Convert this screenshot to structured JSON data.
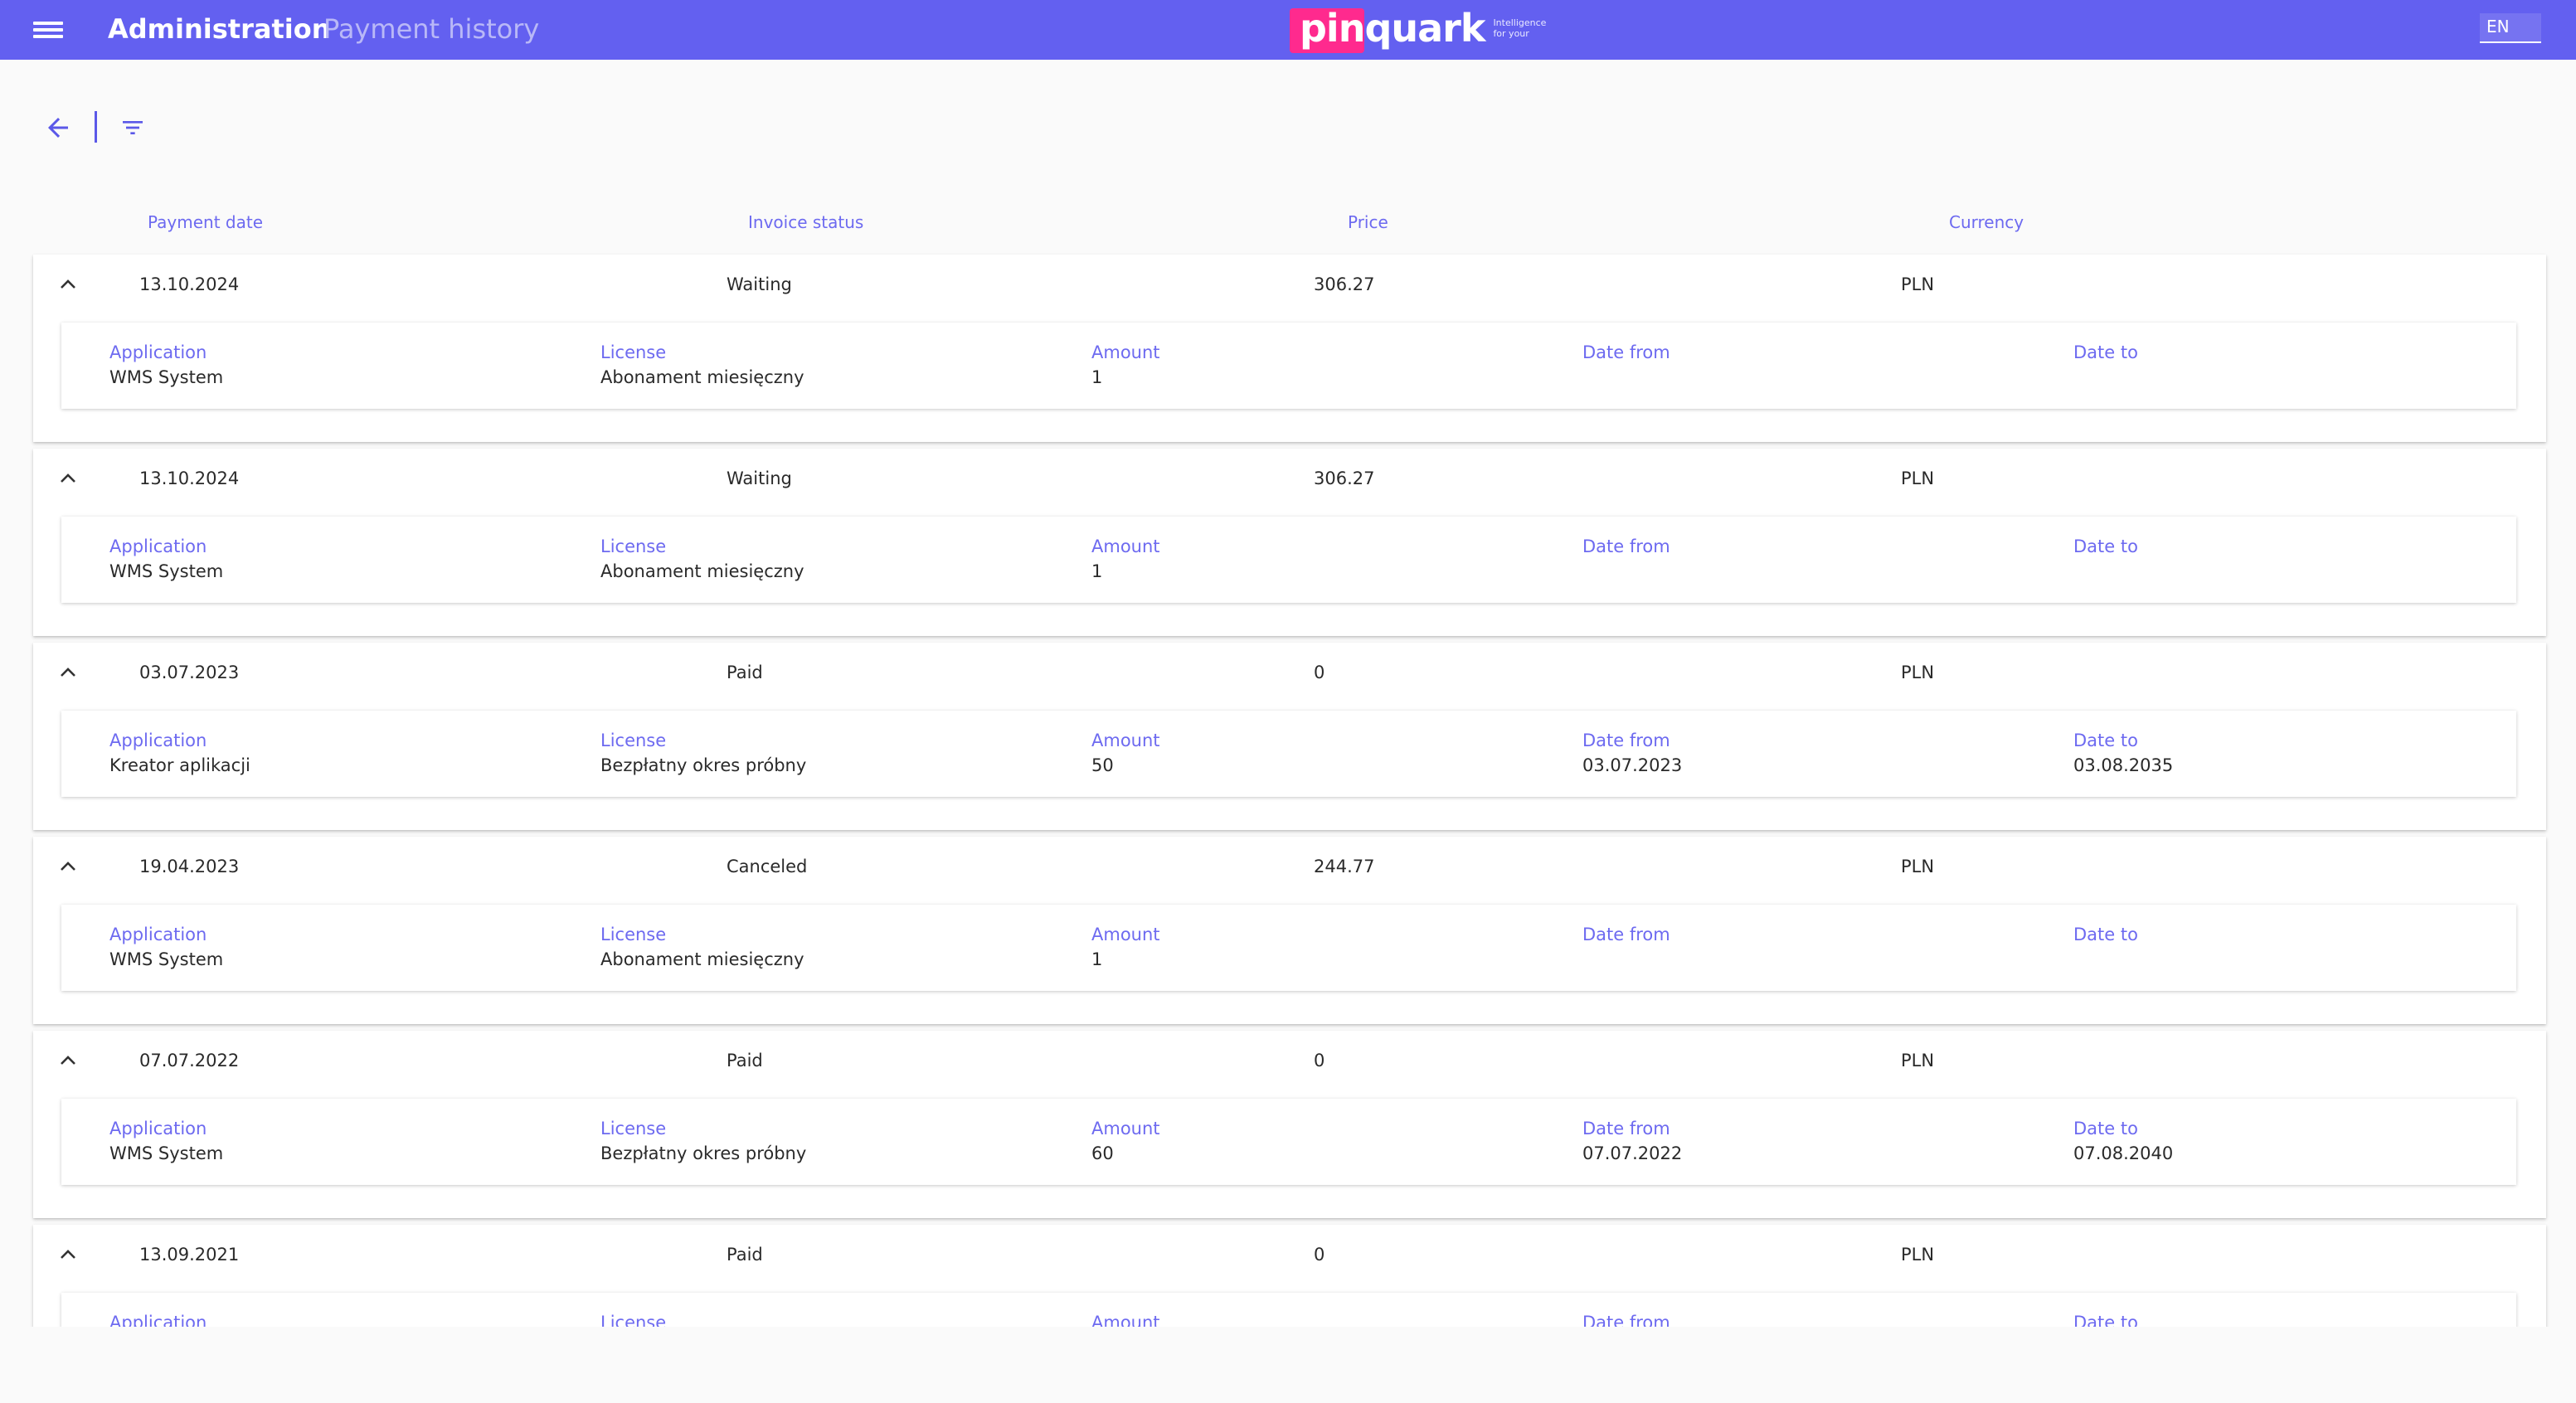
{
  "header": {
    "title": "Administration",
    "subtitle": "Payment history",
    "logo_text": "pinquark",
    "logo_tagline": "Intelligence for your",
    "language": "EN"
  },
  "colors": {
    "header_bg": "#6360f0",
    "accent": "#6d6af0",
    "logo_pink": "#ff2a8e"
  },
  "icons": {
    "menu": "menu-icon",
    "back": "arrow-left-icon",
    "filter": "filter-icon",
    "expand": "chevron-up-icon"
  },
  "columns": {
    "payment_date": "Payment date",
    "invoice_status": "Invoice status",
    "price": "Price",
    "currency": "Currency"
  },
  "detail_labels": {
    "application": "Application",
    "license": "License",
    "amount": "Amount",
    "date_from": "Date from",
    "date_to": "Date to"
  },
  "payments": [
    {
      "date": "13.10.2024",
      "status": "Waiting",
      "price": "306.27",
      "currency": "PLN",
      "application": "WMS System",
      "license": "Abonament miesięczny",
      "amount": "1",
      "date_from": "",
      "date_to": ""
    },
    {
      "date": "13.10.2024",
      "status": "Waiting",
      "price": "306.27",
      "currency": "PLN",
      "application": "WMS System",
      "license": "Abonament miesięczny",
      "amount": "1",
      "date_from": "",
      "date_to": ""
    },
    {
      "date": "03.07.2023",
      "status": "Paid",
      "price": "0",
      "currency": "PLN",
      "application": "Kreator aplikacji",
      "license": "Bezpłatny okres próbny",
      "amount": "50",
      "date_from": "03.07.2023",
      "date_to": "03.08.2035"
    },
    {
      "date": "19.04.2023",
      "status": "Canceled",
      "price": "244.77",
      "currency": "PLN",
      "application": "WMS System",
      "license": "Abonament miesięczny",
      "amount": "1",
      "date_from": "",
      "date_to": ""
    },
    {
      "date": "07.07.2022",
      "status": "Paid",
      "price": "0",
      "currency": "PLN",
      "application": "WMS System",
      "license": "Bezpłatny okres próbny",
      "amount": "60",
      "date_from": "07.07.2022",
      "date_to": "07.08.2040"
    },
    {
      "date": "13.09.2021",
      "status": "Paid",
      "price": "0",
      "currency": "PLN",
      "application": "",
      "license": "",
      "amount": "",
      "date_from": "",
      "date_to": ""
    }
  ]
}
